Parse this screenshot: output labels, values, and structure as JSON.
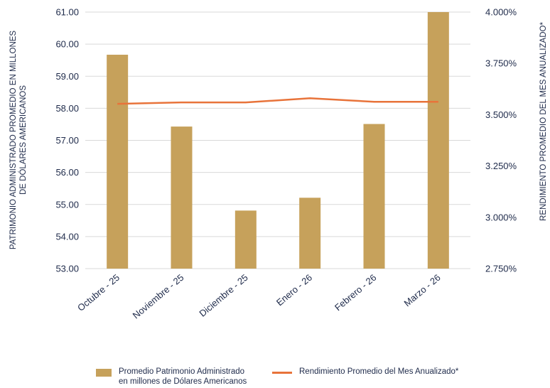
{
  "chart_data": {
    "type": "bar",
    "categories": [
      "Octubre - 25",
      "Noviembre - 25",
      "Diciembre - 25",
      "Enero - 26",
      "Febrero - 26",
      "Marzo - 26"
    ],
    "series": [
      {
        "name": "Promedio Patrimonio Administrado en millones de Dólares Americanos",
        "legend_lines": [
          "Promedio Patrimonio Administrado",
          "en millones de Dólares Americanos"
        ],
        "type": "bar",
        "axis": "left",
        "values": [
          59.67,
          57.43,
          54.81,
          55.21,
          57.51,
          61.0
        ],
        "color": "#c6a15b"
      },
      {
        "name": "Rendimiento Promedio del Mes Anualizado*",
        "legend_lines": [
          "Rendimiento Promedio del Mes Anualizado*"
        ],
        "type": "line",
        "axis": "right",
        "values": [
          3.553,
          3.56,
          3.56,
          3.58,
          3.563,
          3.563
        ],
        "color": "#e8733a"
      }
    ],
    "ylabel": "PATRIMONIO ADMINISTRADO PROMEDIO EN MILLONES DE DÓLARES AMERICANOS",
    "ylabel_lines": [
      "PATRIMONIO ADMINISTRADO PROMEDIO EN MILLONES",
      "DE DÓLARES AMERICANOS"
    ],
    "y2label": "RENDIMIENTO PROMEDIO DEL MES ANUALIZADO*",
    "ylim": [
      53,
      61
    ],
    "yticks": [
      53,
      54,
      55,
      56,
      57,
      58,
      59,
      60,
      61
    ],
    "ytick_labels": [
      "53.00",
      "54.00",
      "55.00",
      "56.00",
      "57.00",
      "58.00",
      "59.00",
      "60.00",
      "61.00"
    ],
    "y2lim": [
      2.75,
      4.0
    ],
    "y2ticks": [
      2.75,
      3.0,
      3.25,
      3.5,
      3.75,
      4.0
    ],
    "y2tick_labels": [
      "2.750%",
      "3.000%",
      "3.250%",
      "3.500%",
      "3.750%",
      "4.000%"
    ],
    "grid": true,
    "legend_position": "bottom"
  },
  "colors": {
    "text": "#1e2a4a",
    "grid": "#d9d9d9",
    "bar": "#c6a15b",
    "line": "#e8733a"
  }
}
